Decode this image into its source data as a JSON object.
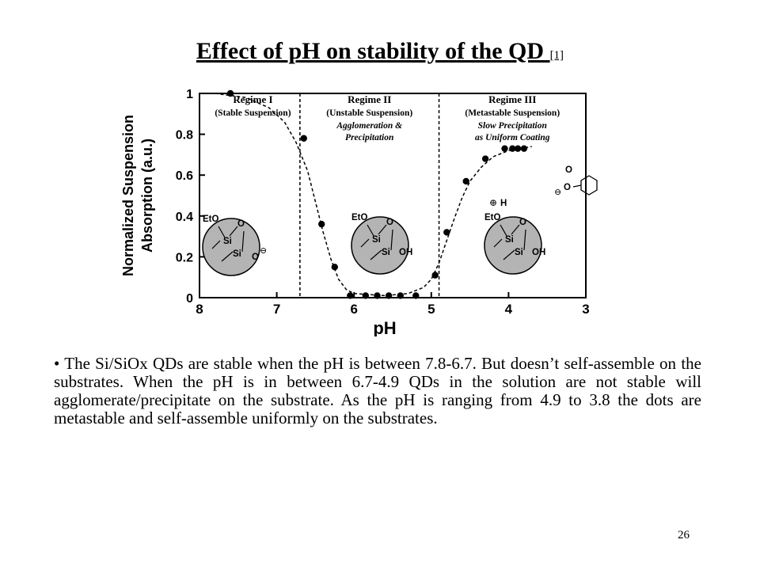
{
  "slide": {
    "title": "Effect of pH on stability of the QD ",
    "title_ref": "[1]",
    "body": "• The Si/SiOx QDs are stable when the pH is between 7.8-6.7. But doesn’t self-assemble on the substrates. When the pH is in between 6.7-4.9 QDs in the solution are not stable will agglomerate/precipitate on the substrate. As the pH is ranging from 4.9 to 3.8 the dots are metastable and self-assemble uniformly on the substrates.",
    "page_number": "26"
  },
  "chart_data": {
    "type": "scatter",
    "xlabel": "pH",
    "ylabel_line1": "Normalized Suspension",
    "ylabel_line2": "Absorption (a.u.)",
    "x_reversed": true,
    "xlim": [
      8,
      3
    ],
    "ylim": [
      0,
      1
    ],
    "x_ticks": [
      "8",
      "7",
      "6",
      "5",
      "4",
      "3"
    ],
    "y_ticks": [
      "0",
      "0.2",
      "0.4",
      "0.6",
      "0.8",
      "1"
    ],
    "regime_boundaries": [
      6.7,
      4.9
    ],
    "regimes": [
      {
        "name": "Regime I",
        "desc1": "(Stable Suspension)",
        "desc2": "",
        "desc3": ""
      },
      {
        "name": "Regime II",
        "desc1": "(Unstable Suspension)",
        "desc2": "Agglomeration &",
        "desc3": "Precipitation"
      },
      {
        "name": "Regime III",
        "desc1": "(Metastable Suspension)",
        "desc2": "Slow Precipitation",
        "desc3": "as Uniform Coating"
      }
    ],
    "points": [
      {
        "x": 7.6,
        "y": 1.0
      },
      {
        "x": 6.65,
        "y": 0.78
      },
      {
        "x": 6.42,
        "y": 0.36
      },
      {
        "x": 6.25,
        "y": 0.15
      },
      {
        "x": 6.05,
        "y": 0.01
      },
      {
        "x": 5.85,
        "y": 0.01
      },
      {
        "x": 5.7,
        "y": 0.01
      },
      {
        "x": 5.55,
        "y": 0.01
      },
      {
        "x": 5.4,
        "y": 0.01
      },
      {
        "x": 5.2,
        "y": 0.01
      },
      {
        "x": 4.95,
        "y": 0.11
      },
      {
        "x": 4.8,
        "y": 0.32
      },
      {
        "x": 4.55,
        "y": 0.57
      },
      {
        "x": 4.3,
        "y": 0.68
      },
      {
        "x": 4.05,
        "y": 0.73
      },
      {
        "x": 3.95,
        "y": 0.73
      },
      {
        "x": 3.88,
        "y": 0.73
      },
      {
        "x": 3.8,
        "y": 0.73
      }
    ],
    "fit_curve": [
      [
        7.8,
        1.0
      ],
      [
        7.4,
        0.98
      ],
      [
        7.1,
        0.93
      ],
      [
        6.9,
        0.86
      ],
      [
        6.75,
        0.76
      ],
      [
        6.6,
        0.62
      ],
      [
        6.5,
        0.47
      ],
      [
        6.4,
        0.32
      ],
      [
        6.3,
        0.19
      ],
      [
        6.2,
        0.09
      ],
      [
        6.1,
        0.04
      ],
      [
        6.0,
        0.02
      ],
      [
        5.6,
        0.01
      ],
      [
        5.3,
        0.02
      ],
      [
        5.1,
        0.05
      ],
      [
        5.0,
        0.09
      ],
      [
        4.9,
        0.17
      ],
      [
        4.8,
        0.28
      ],
      [
        4.7,
        0.39
      ],
      [
        4.6,
        0.49
      ],
      [
        4.5,
        0.57
      ],
      [
        4.35,
        0.64
      ],
      [
        4.2,
        0.69
      ],
      [
        4.0,
        0.72
      ],
      [
        3.7,
        0.74
      ]
    ],
    "particle_labels": {
      "eto": "EtO",
      "si": "Si",
      "o": "O",
      "oh": "OH",
      "h": "H",
      "o_minus": "⊖",
      "o_plus": "⊕"
    }
  }
}
